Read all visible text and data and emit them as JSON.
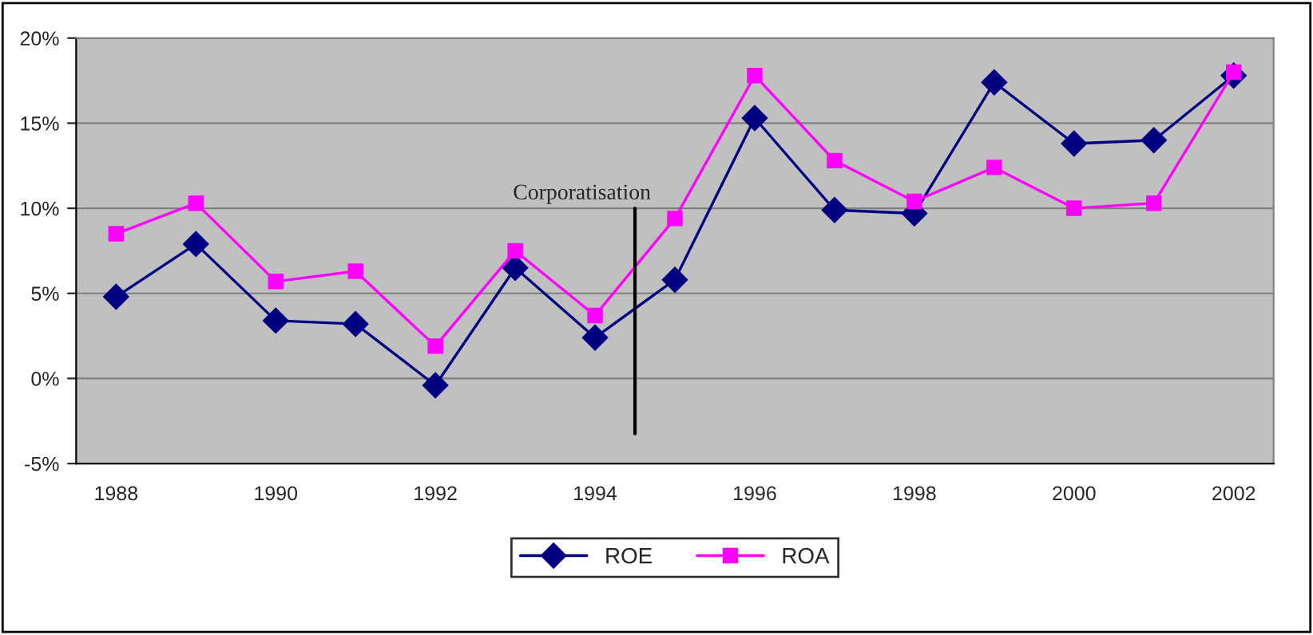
{
  "chart_data": {
    "type": "line",
    "categories": [
      "1988",
      null,
      "1990",
      null,
      "1992",
      null,
      "1994",
      null,
      "1996",
      null,
      "1998",
      null,
      "2000",
      null,
      "2002"
    ],
    "series": [
      {
        "name": "ROE",
        "color": "#000080",
        "marker": "diamond",
        "values": [
          4.8,
          7.9,
          3.4,
          3.2,
          -0.4,
          6.5,
          2.4,
          5.8,
          15.3,
          9.9,
          9.7,
          17.4,
          13.8,
          14.0,
          17.8
        ]
      },
      {
        "name": "ROA",
        "color": "#ff00ff",
        "marker": "square",
        "values": [
          8.5,
          10.3,
          5.7,
          6.3,
          1.9,
          7.5,
          3.7,
          9.4,
          17.8,
          12.8,
          10.4,
          12.4,
          10.0,
          10.3,
          18.0
        ]
      }
    ],
    "ylim": [
      -5,
      20
    ],
    "yticks": [
      {
        "value": -5,
        "label": "-5%"
      },
      {
        "value": 0,
        "label": "0%"
      },
      {
        "value": 5,
        "label": "5%"
      },
      {
        "value": 10,
        "label": "10%"
      },
      {
        "value": 15,
        "label": "15%"
      },
      {
        "value": 20,
        "label": "20%"
      }
    ],
    "ref_lines": [
      {
        "axis": "x",
        "value": "1994",
        "label": "Corporatisation",
        "color": "#000000"
      }
    ],
    "grid": "y",
    "legend": "bottom",
    "line_style": "solid"
  }
}
